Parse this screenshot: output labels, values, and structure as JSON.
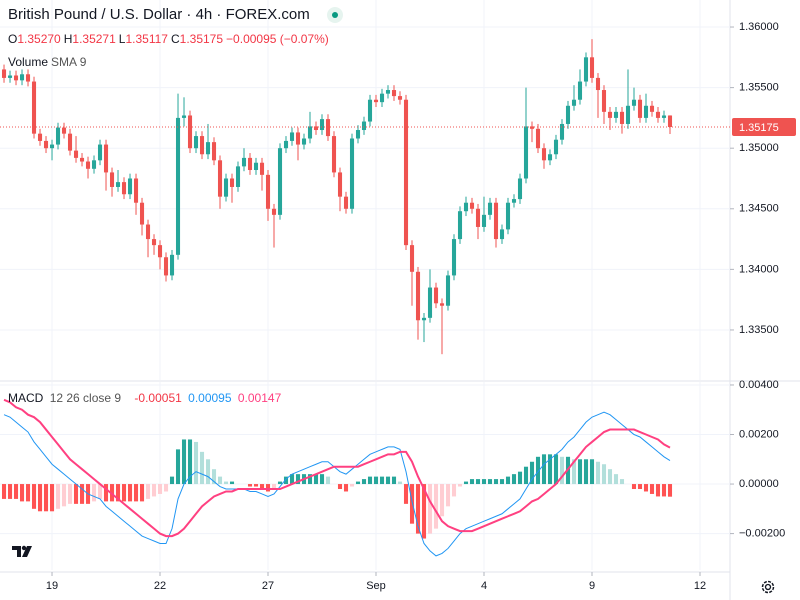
{
  "header": {
    "title": "British Pound / U.S. Dollar · 4h · FOREX.com",
    "ohlc": [
      {
        "key": "O",
        "text": "1.35270"
      },
      {
        "key": "H",
        "text": "1.35271"
      },
      {
        "key": "L",
        "text": "1.35117"
      },
      {
        "key": "C",
        "text": "1.35175"
      }
    ],
    "change": "−0.00095 (−0.07%)",
    "indicator": [
      "Volume",
      "SMA 9"
    ]
  },
  "chart_data": [
    {
      "type": "candlestick",
      "up_color": "#26a69a",
      "down_color": "#ef5350",
      "open": [
        1.3565,
        1.3558,
        1.356,
        1.3556,
        1.3561,
        1.3555,
        1.3512,
        1.3506,
        1.35,
        1.3503,
        1.3517,
        1.3512,
        1.3498,
        1.3492,
        1.3489,
        1.3483,
        1.349,
        1.3503,
        1.348,
        1.3468,
        1.3472,
        1.3462,
        1.3475,
        1.3455,
        1.3437,
        1.3425,
        1.342,
        1.341,
        1.3395,
        1.3412,
        1.3525,
        1.3527,
        1.35,
        1.351,
        1.3495,
        1.3505,
        1.349,
        1.346,
        1.3475,
        1.3468,
        1.3485,
        1.3492,
        1.3482,
        1.3488,
        1.3478,
        1.345,
        1.3445,
        1.35,
        1.3506,
        1.3513,
        1.3503,
        1.3508,
        1.3518,
        1.3515,
        1.3524,
        1.351,
        1.348,
        1.346,
        1.345,
        1.3508,
        1.3515,
        1.3522,
        1.354,
        1.3538,
        1.3545,
        1.3548,
        1.3543,
        1.354,
        1.342,
        1.3398,
        1.3358,
        1.336,
        1.3385,
        1.3372,
        1.337,
        1.3395,
        1.3425,
        1.3448,
        1.3455,
        1.345,
        1.3435,
        1.3445,
        1.3455,
        1.3425,
        1.3433,
        1.3455,
        1.3458,
        1.3475,
        1.3518,
        1.3516,
        1.35,
        1.349,
        1.3495,
        1.3507,
        1.352,
        1.3535,
        1.354,
        1.3555,
        1.3575,
        1.3558,
        1.3548,
        1.353,
        1.3525,
        1.353,
        1.352,
        1.3535,
        1.354,
        1.3525,
        1.3535,
        1.353,
        1.3525,
        1.3527
      ],
      "high": [
        1.3569,
        1.3564,
        1.3564,
        1.3565,
        1.3565,
        1.3559,
        1.3516,
        1.351,
        1.3507,
        1.3521,
        1.3521,
        1.3516,
        1.351,
        1.3496,
        1.3493,
        1.3494,
        1.3507,
        1.3507,
        1.3484,
        1.3482,
        1.3476,
        1.3479,
        1.3479,
        1.3459,
        1.3441,
        1.3429,
        1.3424,
        1.3414,
        1.3416,
        1.3545,
        1.3542,
        1.3531,
        1.3514,
        1.3514,
        1.352,
        1.3509,
        1.3494,
        1.3479,
        1.3479,
        1.3489,
        1.35,
        1.3496,
        1.3492,
        1.3492,
        1.3482,
        1.3454,
        1.3504,
        1.351,
        1.3517,
        1.3517,
        1.3512,
        1.353,
        1.3522,
        1.3528,
        1.3528,
        1.3514,
        1.3484,
        1.3464,
        1.3512,
        1.3519,
        1.3526,
        1.3544,
        1.3544,
        1.3549,
        1.3552,
        1.3552,
        1.3547,
        1.3544,
        1.3424,
        1.3402,
        1.3364,
        1.34,
        1.3389,
        1.3376,
        1.3399,
        1.3429,
        1.3452,
        1.346,
        1.3459,
        1.3454,
        1.346,
        1.3459,
        1.3459,
        1.3437,
        1.3459,
        1.3462,
        1.3479,
        1.355,
        1.3522,
        1.352,
        1.3504,
        1.3499,
        1.3511,
        1.3524,
        1.3539,
        1.3552,
        1.3565,
        1.3579,
        1.359,
        1.3562,
        1.3552,
        1.3534,
        1.3534,
        1.3534,
        1.3565,
        1.355,
        1.3544,
        1.3545,
        1.3539,
        1.3534,
        1.3531,
        1.35271
      ],
      "low": [
        1.3554,
        1.3554,
        1.3552,
        1.3552,
        1.3551,
        1.3508,
        1.3502,
        1.3496,
        1.349,
        1.3499,
        1.3508,
        1.3494,
        1.3488,
        1.3485,
        1.3475,
        1.3479,
        1.3486,
        1.3465,
        1.346,
        1.3464,
        1.3458,
        1.3458,
        1.3445,
        1.3428,
        1.341,
        1.3412,
        1.34,
        1.339,
        1.3391,
        1.3408,
        1.3518,
        1.3496,
        1.3496,
        1.3491,
        1.3491,
        1.3486,
        1.345,
        1.3456,
        1.3455,
        1.3464,
        1.3481,
        1.3478,
        1.3478,
        1.3465,
        1.344,
        1.3418,
        1.3441,
        1.3496,
        1.3502,
        1.349,
        1.3499,
        1.3504,
        1.3511,
        1.3511,
        1.3506,
        1.3476,
        1.3448,
        1.3446,
        1.3446,
        1.3504,
        1.3511,
        1.3518,
        1.3534,
        1.3534,
        1.3541,
        1.3539,
        1.3536,
        1.3416,
        1.337,
        1.3342,
        1.334,
        1.3356,
        1.3368,
        1.333,
        1.3366,
        1.3391,
        1.3421,
        1.3444,
        1.3446,
        1.3425,
        1.3431,
        1.3441,
        1.3418,
        1.3421,
        1.3429,
        1.3451,
        1.3454,
        1.3471,
        1.3505,
        1.3496,
        1.3483,
        1.3486,
        1.3491,
        1.3503,
        1.3516,
        1.3531,
        1.3536,
        1.3551,
        1.3554,
        1.3525,
        1.352,
        1.3515,
        1.3521,
        1.3512,
        1.3516,
        1.3531,
        1.3521,
        1.3521,
        1.3526,
        1.3521,
        1.3521,
        1.35117
      ],
      "close": [
        1.3558,
        1.356,
        1.3556,
        1.3561,
        1.3555,
        1.3512,
        1.3506,
        1.35,
        1.3503,
        1.3517,
        1.3512,
        1.3498,
        1.3492,
        1.3489,
        1.3483,
        1.349,
        1.3503,
        1.348,
        1.3468,
        1.3472,
        1.3462,
        1.3475,
        1.3455,
        1.3437,
        1.3425,
        1.342,
        1.341,
        1.3395,
        1.3412,
        1.3525,
        1.3527,
        1.35,
        1.351,
        1.3495,
        1.3505,
        1.349,
        1.346,
        1.3475,
        1.3468,
        1.3485,
        1.3492,
        1.3482,
        1.3488,
        1.3478,
        1.345,
        1.3445,
        1.35,
        1.3506,
        1.3513,
        1.3503,
        1.3508,
        1.3518,
        1.3515,
        1.3524,
        1.351,
        1.348,
        1.346,
        1.345,
        1.3508,
        1.3515,
        1.3522,
        1.354,
        1.3538,
        1.3545,
        1.3548,
        1.3543,
        1.354,
        1.342,
        1.3398,
        1.3358,
        1.336,
        1.3385,
        1.3372,
        1.337,
        1.3395,
        1.3425,
        1.3448,
        1.3455,
        1.345,
        1.3435,
        1.3445,
        1.3455,
        1.3425,
        1.3433,
        1.3455,
        1.3458,
        1.3475,
        1.3518,
        1.3516,
        1.35,
        1.349,
        1.3495,
        1.3507,
        1.352,
        1.3535,
        1.354,
        1.3555,
        1.3575,
        1.3558,
        1.3548,
        1.353,
        1.3525,
        1.353,
        1.352,
        1.3535,
        1.354,
        1.3525,
        1.3535,
        1.353,
        1.3525,
        1.3527,
        1.35175
      ],
      "xlim": [
        -0.67,
        121
      ],
      "ylim": [
        1.33087,
        1.36223
      ],
      "xticks": [
        {
          "value": 8,
          "label": "19"
        },
        {
          "value": 26,
          "label": "22"
        },
        {
          "value": 44,
          "label": "27"
        },
        {
          "value": 62,
          "label": "Sep"
        },
        {
          "value": 80,
          "label": "4"
        },
        {
          "value": 98,
          "label": "9"
        },
        {
          "value": 116,
          "label": "12"
        }
      ],
      "yticks": [
        {
          "value": 1.335,
          "label": "1.33500"
        },
        {
          "value": 1.34,
          "label": "1.34000"
        },
        {
          "value": 1.345,
          "label": "1.34500"
        },
        {
          "value": 1.35,
          "label": "1.35000"
        },
        {
          "value": 1.355,
          "label": "1.35500"
        },
        {
          "value": 1.36,
          "label": "1.36000"
        }
      ],
      "grid": true
    },
    {
      "type": "macd",
      "title": "MACD",
      "params": "12 26 close 9",
      "hist_colors": [
        "#26a69a",
        "#b2dfdb",
        "#ff5252",
        "#ffcdd2"
      ],
      "series": [
        {
          "name": "Histogram",
          "kind": "bar",
          "color": "#ff5252",
          "values": [
            -0.0006,
            -0.0006,
            -0.0006,
            -0.0007,
            -0.0007,
            -0.001,
            -0.0011,
            -0.0011,
            -0.0011,
            -0.001,
            -0.0009,
            -0.0008,
            -0.0008,
            -0.0008,
            -0.0008,
            -0.0007,
            -0.0006,
            -0.0007,
            -0.0007,
            -0.0007,
            -0.0007,
            -0.0007,
            -0.0007,
            -0.0007,
            -0.0006,
            -0.0005,
            -0.0004,
            -0.0003,
            0.0003,
            0.0014,
            0.0018,
            0.0018,
            0.0017,
            0.0013,
            0.001,
            0.0006,
            0.0003,
            0.0001,
            0.0001,
            0.0,
            0.0,
            -0.0001,
            -0.0001,
            -0.0002,
            -0.0003,
            -0.0002,
            0.0001,
            0.0003,
            0.0004,
            0.0004,
            0.0004,
            0.0004,
            0.0004,
            0.0004,
            0.0003,
            0.0,
            -0.0002,
            -0.0003,
            -0.0001,
            0.0001,
            0.0002,
            0.0003,
            0.0003,
            0.0003,
            0.0003,
            0.0003,
            0.0001,
            -0.0008,
            -0.0016,
            -0.002,
            -0.0022,
            -0.002,
            -0.0018,
            -0.0013,
            -0.0009,
            -0.0005,
            -0.0001,
            0.0001,
            0.0002,
            0.0002,
            0.0002,
            0.0002,
            0.0002,
            0.0002,
            0.0003,
            0.0004,
            0.0005,
            0.0007,
            0.0009,
            0.0011,
            0.0012,
            0.0012,
            0.0012,
            0.0011,
            0.0011,
            0.001,
            0.001,
            0.001,
            0.001,
            0.0009,
            0.0008,
            0.0006,
            0.0004,
            0.0002,
            0.0,
            -0.0002,
            -0.0002,
            -0.0003,
            -0.0004,
            -0.0005,
            -0.0005,
            -0.00051
          ]
        },
        {
          "name": "MACD",
          "kind": "line",
          "color": "#2196f3",
          "values": [
            0.0028,
            0.0027,
            0.0025,
            0.0023,
            0.0021,
            0.0017,
            0.0014,
            0.0011,
            0.0008,
            0.0006,
            0.0004,
            0.0002,
            0.0,
            -0.0002,
            -0.0004,
            -0.0005,
            -0.0006,
            -0.0009,
            -0.0011,
            -0.0013,
            -0.0015,
            -0.0017,
            -0.0019,
            -0.0021,
            -0.0022,
            -0.0023,
            -0.0024,
            -0.0024,
            -0.0018,
            -0.0006,
            0.0,
            0.0003,
            0.0005,
            0.0004,
            0.0003,
            0.0001,
            -0.0001,
            -0.0002,
            -0.0002,
            -0.0002,
            -0.0002,
            -0.0003,
            -0.0003,
            -0.0004,
            -0.0005,
            -0.0004,
            -0.0001,
            0.0002,
            0.0004,
            0.0005,
            0.0006,
            0.0007,
            0.0008,
            0.0009,
            0.0009,
            0.0007,
            0.0005,
            0.0004,
            0.0006,
            0.0008,
            0.001,
            0.0012,
            0.0013,
            0.0014,
            0.0015,
            0.0015,
            0.0014,
            0.0005,
            -0.0007,
            -0.0017,
            -0.0024,
            -0.0027,
            -0.0029,
            -0.0028,
            -0.0026,
            -0.0023,
            -0.002,
            -0.0018,
            -0.0017,
            -0.0016,
            -0.0015,
            -0.0014,
            -0.0013,
            -0.0012,
            -0.001,
            -0.0008,
            -0.0006,
            -0.0002,
            0.0002,
            0.0005,
            0.0008,
            0.001,
            0.0012,
            0.0014,
            0.0017,
            0.0019,
            0.0022,
            0.0025,
            0.0027,
            0.0028,
            0.0029,
            0.0028,
            0.0026,
            0.0024,
            0.0022,
            0.002,
            0.0019,
            0.0017,
            0.0015,
            0.0013,
            0.0011,
            0.00095
          ]
        },
        {
          "name": "Signal",
          "kind": "line",
          "color": "#ff4081",
          "values": [
            0.0034,
            0.0033,
            0.0031,
            0.003,
            0.0028,
            0.0027,
            0.0025,
            0.0022,
            0.0019,
            0.0016,
            0.0013,
            0.001,
            0.0008,
            0.0006,
            0.0004,
            0.0002,
            0.0,
            -0.0002,
            -0.0004,
            -0.0006,
            -0.0008,
            -0.001,
            -0.0012,
            -0.0014,
            -0.0016,
            -0.0018,
            -0.002,
            -0.0021,
            -0.0021,
            -0.002,
            -0.0018,
            -0.0015,
            -0.0012,
            -0.0009,
            -0.0007,
            -0.0005,
            -0.0004,
            -0.0003,
            -0.0003,
            -0.0002,
            -0.0002,
            -0.0002,
            -0.0002,
            -0.0002,
            -0.0002,
            -0.0002,
            -0.0002,
            -0.0001,
            0.0,
            0.0001,
            0.0002,
            0.0003,
            0.0004,
            0.0005,
            0.0006,
            0.0007,
            0.0007,
            0.0007,
            0.0007,
            0.0007,
            0.0008,
            0.0009,
            0.001,
            0.0011,
            0.0012,
            0.0012,
            0.0013,
            0.0013,
            0.0009,
            0.0003,
            -0.0002,
            -0.0007,
            -0.0011,
            -0.0015,
            -0.0017,
            -0.0018,
            -0.0019,
            -0.0019,
            -0.0019,
            -0.0018,
            -0.0017,
            -0.0016,
            -0.0015,
            -0.0014,
            -0.0013,
            -0.0012,
            -0.0011,
            -0.0009,
            -0.0007,
            -0.0006,
            -0.0004,
            -0.0002,
            0.0,
            0.0003,
            0.0006,
            0.0009,
            0.0012,
            0.0015,
            0.0017,
            0.0019,
            0.0021,
            0.0022,
            0.0022,
            0.0022,
            0.0022,
            0.0022,
            0.0021,
            0.002,
            0.0019,
            0.0018,
            0.0016,
            0.00147
          ]
        }
      ],
      "xlim": [
        -0.67,
        121
      ],
      "ylim": [
        -0.00347,
        0.00412
      ],
      "yticks": [
        {
          "value": -0.002,
          "label": "−0.00200"
        },
        {
          "value": 0,
          "label": "0.00000"
        },
        {
          "value": 0.002,
          "label": "0.00200"
        },
        {
          "value": 0.004,
          "label": "0.00400"
        }
      ],
      "grid": true
    }
  ]
}
